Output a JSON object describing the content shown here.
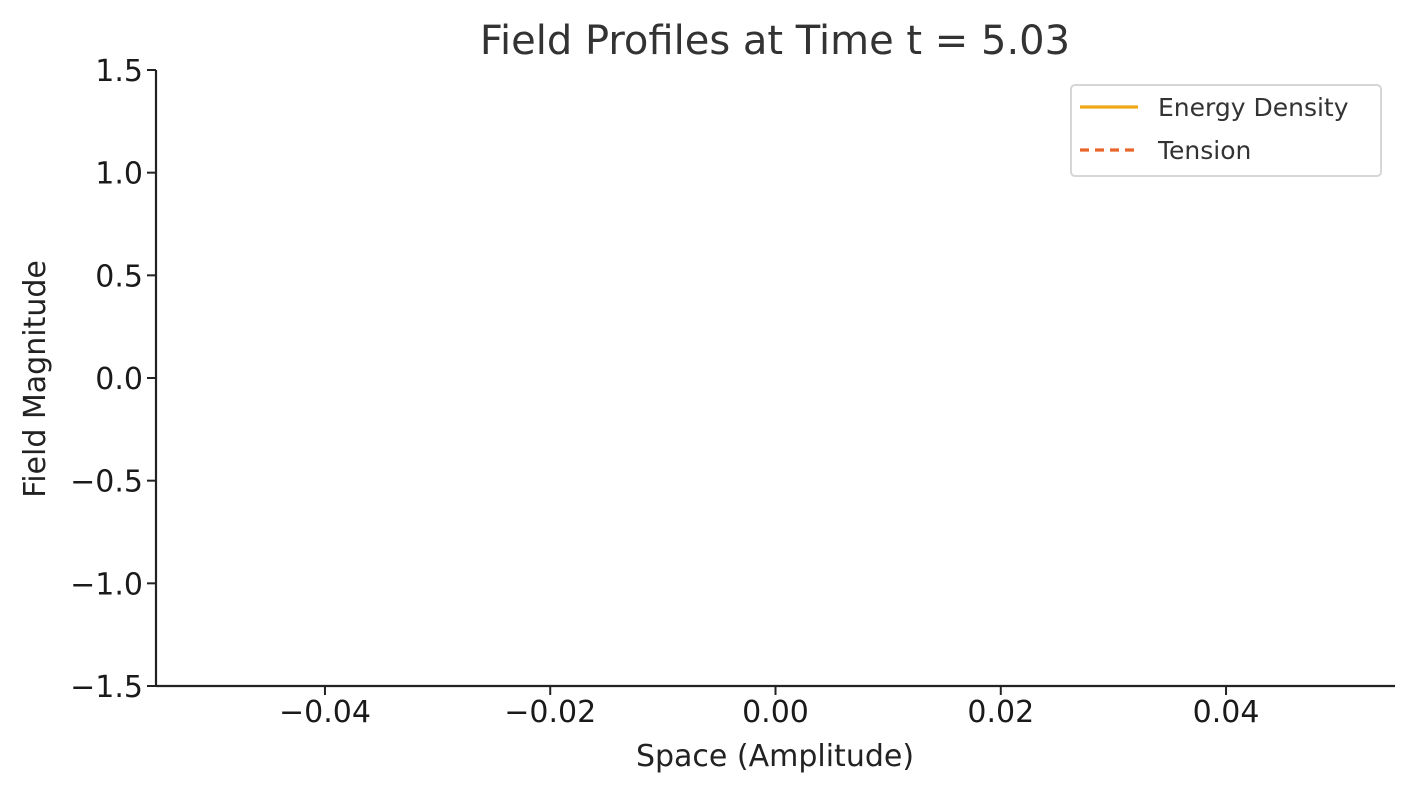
{
  "chart_data": {
    "type": "line",
    "title": "Field Profiles at Time t = 5.03",
    "xlabel": "Space (Amplitude)",
    "ylabel": "Field Magnitude",
    "xlim": [
      -0.055,
      0.055
    ],
    "ylim": [
      -1.5,
      1.5
    ],
    "x_ticks": [
      -0.04,
      -0.02,
      0.0,
      0.02,
      0.04
    ],
    "x_tick_labels": [
      "−0.04",
      "−0.02",
      "0.00",
      "0.02",
      "0.04"
    ],
    "y_ticks": [
      1.5,
      1.0,
      0.5,
      0.0,
      -0.5,
      -1.0,
      -1.5
    ],
    "y_tick_labels": [
      "1.5",
      "1.0",
      "0.5",
      "0.0",
      "−0.5",
      "−1.0",
      "−1.5"
    ],
    "grid": false,
    "legend_position": "top-right",
    "series": [
      {
        "name": "Energy Density",
        "color": "#f0a818",
        "line_style": "solid",
        "x": [],
        "y": []
      },
      {
        "name": "Tension",
        "color": "#e8662a",
        "line_style": "dashed",
        "x": [],
        "y": []
      }
    ]
  }
}
